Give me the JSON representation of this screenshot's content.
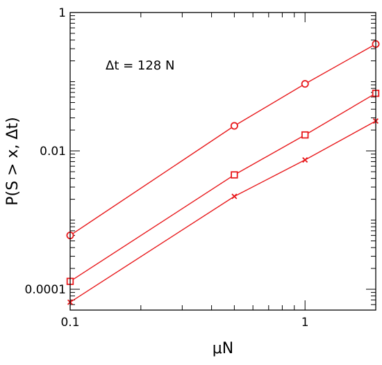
{
  "chart_data": {
    "type": "line",
    "title": "",
    "xlabel": "μN",
    "ylabel": "P(S > x, Δt)",
    "x_scale": "log",
    "y_scale": "log",
    "xlim": [
      0.1,
      2.0
    ],
    "ylim": [
      5e-05,
      1
    ],
    "x_ticks": [
      {
        "value": 0.1,
        "label": "0.1"
      },
      {
        "value": 1,
        "label": "1"
      }
    ],
    "y_ticks": [
      {
        "value": 0.0001,
        "label": "0.0001"
      },
      {
        "value": 0.01,
        "label": "0.01"
      },
      {
        "value": 1,
        "label": "1"
      }
    ],
    "annotation": "Δt = 128 N",
    "grid": false,
    "color": "#e8191c",
    "series": [
      {
        "marker": "circle",
        "x": [
          0.1,
          0.5,
          1,
          2
        ],
        "y": [
          0.0006,
          0.023,
          0.093,
          0.35
        ]
      },
      {
        "marker": "square",
        "x": [
          0.1,
          0.5,
          1,
          2
        ],
        "y": [
          0.00013,
          0.0045,
          0.017,
          0.068
        ]
      },
      {
        "marker": "cross",
        "x": [
          0.1,
          0.5,
          1,
          2
        ],
        "y": [
          6.5e-05,
          0.0022,
          0.0074,
          0.027
        ]
      }
    ]
  }
}
